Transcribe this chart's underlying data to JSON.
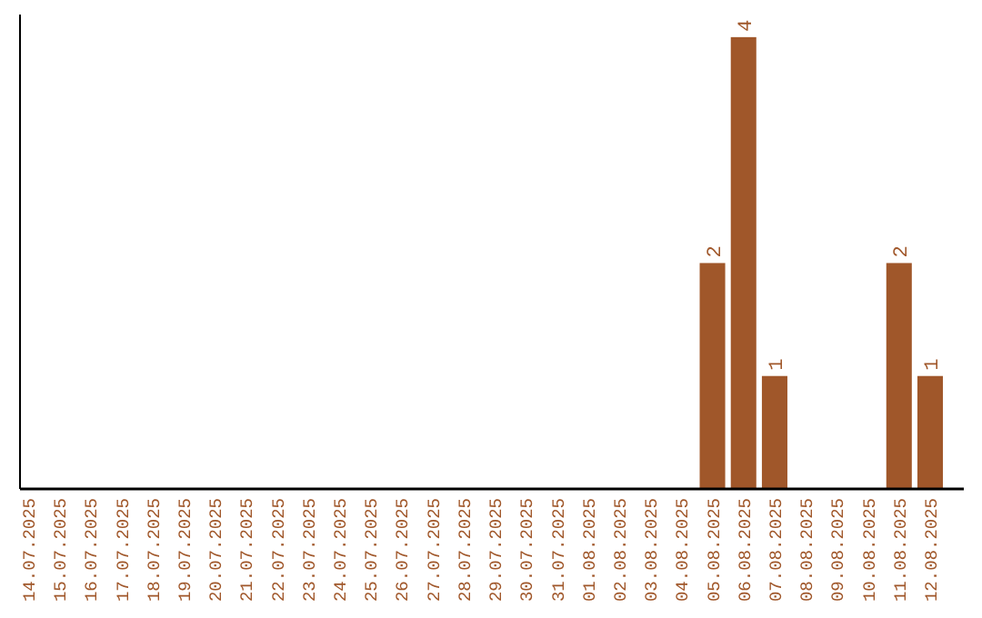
{
  "chart_data": {
    "type": "bar",
    "categories": [
      "14.07.2025",
      "15.07.2025",
      "16.07.2025",
      "17.07.2025",
      "18.07.2025",
      "19.07.2025",
      "20.07.2025",
      "21.07.2025",
      "22.07.2025",
      "23.07.2025",
      "24.07.2025",
      "25.07.2025",
      "26.07.2025",
      "27.07.2025",
      "28.07.2025",
      "29.07.2025",
      "30.07.2025",
      "31.07.2025",
      "01.08.2025",
      "02.08.2025",
      "03.08.2025",
      "04.08.2025",
      "05.08.2025",
      "06.08.2025",
      "07.08.2025",
      "08.08.2025",
      "09.08.2025",
      "10.08.2025",
      "11.08.2025",
      "12.08.2025"
    ],
    "values": [
      null,
      null,
      null,
      null,
      null,
      null,
      null,
      null,
      null,
      null,
      null,
      null,
      null,
      null,
      null,
      null,
      null,
      null,
      null,
      null,
      null,
      null,
      2,
      4,
      1,
      null,
      null,
      null,
      2,
      1
    ],
    "value_labels": [
      null,
      null,
      null,
      null,
      null,
      null,
      null,
      null,
      null,
      null,
      null,
      null,
      null,
      null,
      null,
      null,
      null,
      null,
      null,
      null,
      null,
      null,
      "2",
      "4",
      "1",
      null,
      null,
      null,
      "2",
      "1"
    ],
    "color": "#a0572a",
    "ylim": [
      0,
      4.2
    ]
  }
}
